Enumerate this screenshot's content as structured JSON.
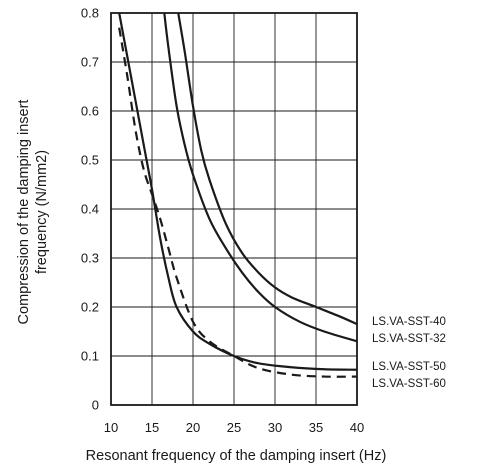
{
  "chart_data": {
    "type": "line",
    "title": "",
    "xlabel": "Resonant frequency of the damping insert (Hz)",
    "ylabel_line1": "Compression of the damping insert",
    "ylabel_line2": "frequency (N/mm2)",
    "xlim": [
      10,
      40
    ],
    "ylim": [
      0,
      0.8
    ],
    "x_ticks": [
      "10",
      "15",
      "20",
      "25",
      "30",
      "35",
      "40"
    ],
    "y_ticks": [
      "0",
      "0.1",
      "0.2",
      "0.3",
      "0.4",
      "0.5",
      "0.6",
      "0.7",
      "0.8"
    ],
    "grid": true,
    "legend_position": "right, aligned with line ends",
    "series": [
      {
        "name": "LS.VA-SST-40",
        "dash": false,
        "points": [
          [
            18.2,
            0.8
          ],
          [
            19,
            0.72
          ],
          [
            20,
            0.61
          ],
          [
            21,
            0.52
          ],
          [
            22,
            0.46
          ],
          [
            24,
            0.37
          ],
          [
            26,
            0.31
          ],
          [
            28,
            0.27
          ],
          [
            30,
            0.24
          ],
          [
            32,
            0.22
          ],
          [
            35,
            0.2
          ],
          [
            38,
            0.18
          ],
          [
            40,
            0.165
          ]
        ]
      },
      {
        "name": "LS.VA-SST-32",
        "dash": false,
        "points": [
          [
            16.5,
            0.8
          ],
          [
            17,
            0.73
          ],
          [
            18,
            0.61
          ],
          [
            19,
            0.53
          ],
          [
            20,
            0.47
          ],
          [
            22,
            0.38
          ],
          [
            24,
            0.32
          ],
          [
            26,
            0.27
          ],
          [
            28,
            0.23
          ],
          [
            30,
            0.2
          ],
          [
            33,
            0.17
          ],
          [
            36,
            0.15
          ],
          [
            40,
            0.13
          ]
        ]
      },
      {
        "name": "LS.VA-SST-50",
        "dash": false,
        "points": [
          [
            11,
            0.8
          ],
          [
            12,
            0.71
          ],
          [
            13,
            0.62
          ],
          [
            14,
            0.53
          ],
          [
            15,
            0.44
          ],
          [
            16,
            0.34
          ],
          [
            17,
            0.26
          ],
          [
            18,
            0.2
          ],
          [
            20,
            0.15
          ],
          [
            22,
            0.125
          ],
          [
            25,
            0.1
          ],
          [
            28,
            0.085
          ],
          [
            32,
            0.077
          ],
          [
            36,
            0.073
          ],
          [
            40,
            0.072
          ]
        ]
      },
      {
        "name": "LS.VA-SST-60",
        "dash": true,
        "points": [
          [
            11,
            0.77
          ],
          [
            12,
            0.67
          ],
          [
            13,
            0.56
          ],
          [
            14,
            0.48
          ],
          [
            15,
            0.43
          ],
          [
            16,
            0.38
          ],
          [
            17,
            0.32
          ],
          [
            18,
            0.26
          ],
          [
            20,
            0.17
          ],
          [
            22,
            0.13
          ],
          [
            25,
            0.1
          ],
          [
            28,
            0.075
          ],
          [
            32,
            0.062
          ],
          [
            36,
            0.058
          ],
          [
            40,
            0.058
          ]
        ]
      }
    ]
  }
}
